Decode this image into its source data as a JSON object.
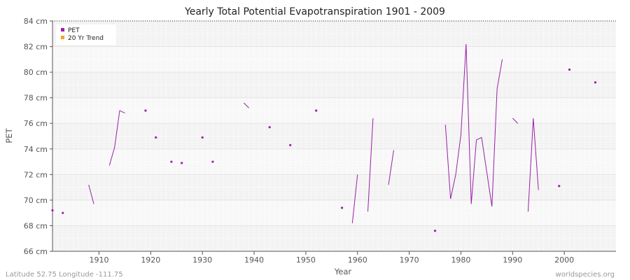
{
  "chart_data": {
    "type": "line",
    "title": "Yearly Total Potential Evapotranspiration 1901 - 2009",
    "xlabel": "Year",
    "ylabel": "PET",
    "xlim": [
      1901,
      2010
    ],
    "ylim": [
      66,
      84
    ],
    "x_ticks": [
      1910,
      1920,
      1930,
      1940,
      1950,
      1960,
      1970,
      1980,
      1990,
      2000
    ],
    "y_ticks": [
      66,
      68,
      70,
      72,
      74,
      76,
      78,
      80,
      82,
      84
    ],
    "y_tick_labels": [
      "66 cm",
      "68 cm",
      "70 cm",
      "72 cm",
      "74 cm",
      "76 cm",
      "78 cm",
      "80 cm",
      "82 cm",
      "84 cm"
    ],
    "grid": true,
    "legend_position": "top-left",
    "series": [
      {
        "name": "PET",
        "color": "#9b1fa8",
        "points": [
          [
            1901,
            69.2
          ],
          [
            1903,
            69.0
          ],
          [
            1908,
            71.2
          ],
          [
            1909,
            69.7
          ],
          [
            1912,
            72.7
          ],
          [
            1913,
            74.1
          ],
          [
            1914,
            77.0
          ],
          [
            1915,
            76.8
          ],
          [
            1919,
            77.0
          ],
          [
            1921,
            74.9
          ],
          [
            1924,
            73.0
          ],
          [
            1926,
            72.9
          ],
          [
            1930,
            74.9
          ],
          [
            1932,
            73.0
          ],
          [
            1938,
            77.6
          ],
          [
            1939,
            77.2
          ],
          [
            1943,
            75.7
          ],
          [
            1947,
            74.3
          ],
          [
            1952,
            77.0
          ],
          [
            1957,
            69.4
          ],
          [
            1959,
            68.2
          ],
          [
            1960,
            72.0
          ],
          [
            1962,
            69.1
          ],
          [
            1963,
            76.4
          ],
          [
            1966,
            71.2
          ],
          [
            1967,
            73.9
          ],
          [
            1975,
            67.6
          ],
          [
            1977,
            75.9
          ],
          [
            1978,
            70.1
          ],
          [
            1979,
            72.0
          ],
          [
            1980,
            75.1
          ],
          [
            1981,
            82.2
          ],
          [
            1982,
            69.7
          ],
          [
            1983,
            74.7
          ],
          [
            1984,
            74.9
          ],
          [
            1985,
            72.2
          ],
          [
            1986,
            69.5
          ],
          [
            1987,
            78.7
          ],
          [
            1988,
            81.0
          ],
          [
            1990,
            76.4
          ],
          [
            1991,
            76.0
          ],
          [
            1993,
            69.1
          ],
          [
            1994,
            76.4
          ],
          [
            1995,
            70.8
          ],
          [
            1999,
            71.1
          ],
          [
            2001,
            80.2
          ],
          [
            2006,
            79.2
          ]
        ]
      },
      {
        "name": "20 Yr Trend",
        "color": "#f5a623",
        "points": []
      }
    ]
  },
  "footer": {
    "left": "Latitude 52.75 Longitude -111.75",
    "right": "worldspecies.org"
  }
}
